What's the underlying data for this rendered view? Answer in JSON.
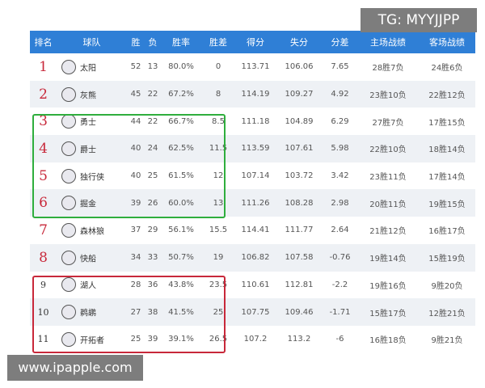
{
  "watermark_top": "TG: MYYJJPP",
  "watermark_bottom": "www.ipapple.com",
  "headers": [
    "排名",
    "球队",
    "胜",
    "负",
    "胜率",
    "胜差",
    "得分",
    "失分",
    "分差",
    "主场战绩",
    "客场战绩"
  ],
  "rows": [
    {
      "rank": "1",
      "team": "太阳",
      "w": "52",
      "l": "13",
      "pct": "80.0%",
      "gb": "0",
      "pf": "113.71",
      "pa": "106.06",
      "diff": "7.65",
      "home": "28胜7负",
      "away": "24胜6负"
    },
    {
      "rank": "2",
      "team": "灰熊",
      "w": "45",
      "l": "22",
      "pct": "67.2%",
      "gb": "8",
      "pf": "114.19",
      "pa": "109.27",
      "diff": "4.92",
      "home": "23胜10负",
      "away": "22胜12负"
    },
    {
      "rank": "3",
      "team": "勇士",
      "w": "44",
      "l": "22",
      "pct": "66.7%",
      "gb": "8.5",
      "pf": "111.18",
      "pa": "104.89",
      "diff": "6.29",
      "home": "27胜7负",
      "away": "17胜15负"
    },
    {
      "rank": "4",
      "team": "爵士",
      "w": "40",
      "l": "24",
      "pct": "62.5%",
      "gb": "11.5",
      "pf": "113.59",
      "pa": "107.61",
      "diff": "5.98",
      "home": "22胜10负",
      "away": "18胜14负"
    },
    {
      "rank": "5",
      "team": "独行侠",
      "w": "40",
      "l": "25",
      "pct": "61.5%",
      "gb": "12",
      "pf": "107.14",
      "pa": "103.72",
      "diff": "3.42",
      "home": "23胜11负",
      "away": "17胜14负"
    },
    {
      "rank": "6",
      "team": "掘金",
      "w": "39",
      "l": "26",
      "pct": "60.0%",
      "gb": "13",
      "pf": "111.26",
      "pa": "108.28",
      "diff": "2.98",
      "home": "20胜11负",
      "away": "19胜15负"
    },
    {
      "rank": "7",
      "team": "森林狼",
      "w": "37",
      "l": "29",
      "pct": "56.1%",
      "gb": "15.5",
      "pf": "114.41",
      "pa": "111.77",
      "diff": "2.64",
      "home": "21胜12负",
      "away": "16胜17负"
    },
    {
      "rank": "8",
      "team": "快船",
      "w": "34",
      "l": "33",
      "pct": "50.7%",
      "gb": "19",
      "pf": "106.82",
      "pa": "107.58",
      "diff": "-0.76",
      "home": "19胜14负",
      "away": "15胜19负"
    },
    {
      "rank": "9",
      "team": "湖人",
      "w": "28",
      "l": "36",
      "pct": "43.8%",
      "gb": "23.5",
      "pf": "110.61",
      "pa": "112.81",
      "diff": "-2.2",
      "home": "19胜16负",
      "away": "9胜20负"
    },
    {
      "rank": "10",
      "team": "鹈鹕",
      "w": "27",
      "l": "38",
      "pct": "41.5%",
      "gb": "25",
      "pf": "107.75",
      "pa": "109.46",
      "diff": "-1.71",
      "home": "15胜17负",
      "away": "12胜21负"
    },
    {
      "rank": "11",
      "team": "开拓者",
      "w": "25",
      "l": "39",
      "pct": "39.1%",
      "gb": "26.5",
      "pf": "107.2",
      "pa": "113.2",
      "diff": "-6",
      "home": "16胜18负",
      "away": "9胜21负"
    }
  ],
  "colors": {
    "header": "#2f7fd6",
    "rank": "#c8283a",
    "box_green": "#2fae3d",
    "box_red": "#c8283a"
  }
}
